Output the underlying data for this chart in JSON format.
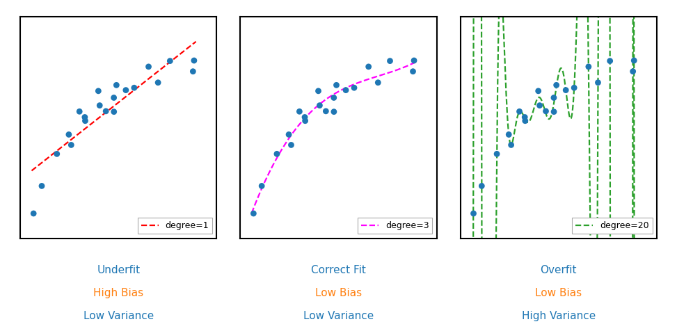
{
  "panels": [
    {
      "degree": 1,
      "line_color": "red",
      "legend_label": "degree=1",
      "title_lines": [
        "Underfit",
        "High Bias",
        "Low Variance"
      ],
      "title_colors": [
        "#1f77b4",
        "#ff7f0e",
        "#1f77b4"
      ]
    },
    {
      "degree": 3,
      "line_color": "magenta",
      "legend_label": "degree=3",
      "title_lines": [
        "Correct Fit",
        "Low Bias",
        "Low Variance"
      ],
      "title_colors": [
        "#1f77b4",
        "#ff7f0e",
        "#1f77b4"
      ]
    },
    {
      "degree": 20,
      "line_color": "#2ca02c",
      "legend_label": "degree=20",
      "title_lines": [
        "Overfit",
        "Low Bias",
        "High Variance"
      ],
      "title_colors": [
        "#1f77b4",
        "#ff7f0e",
        "#1f77b4"
      ]
    }
  ],
  "dot_color": "#1f77b4",
  "dot_size": 40,
  "background_color": "white",
  "seed": 7,
  "n_points": 20
}
